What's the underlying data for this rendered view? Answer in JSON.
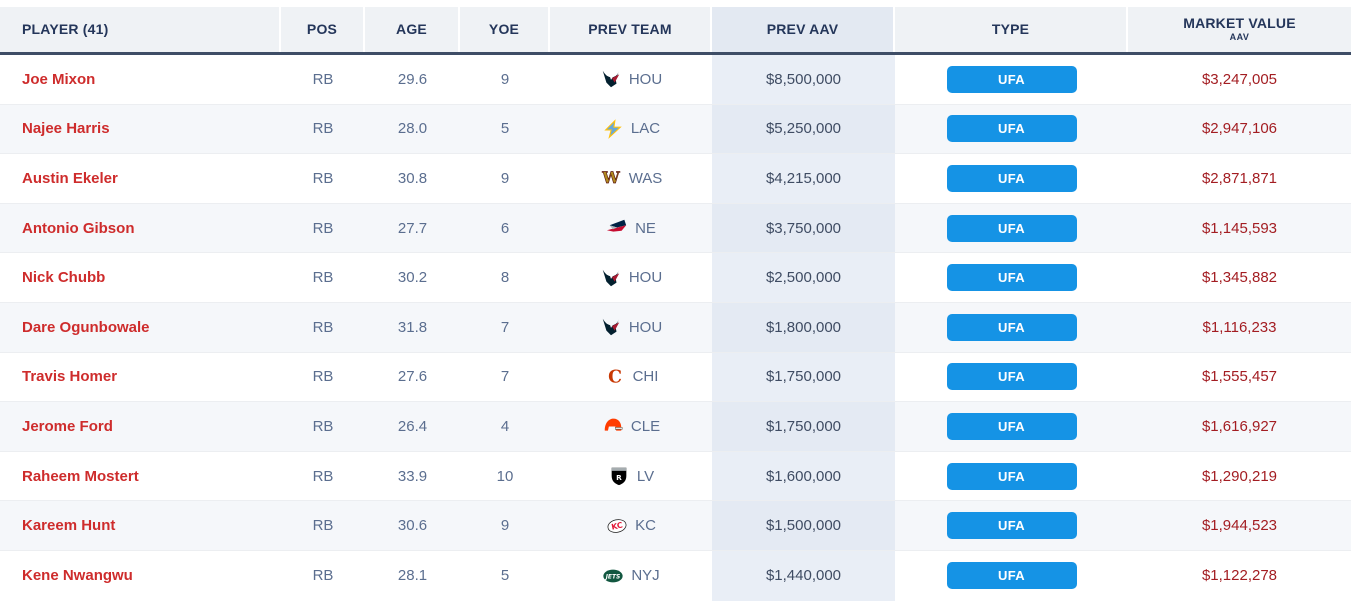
{
  "table": {
    "columns": [
      {
        "id": "player",
        "label": "PLAYER (41)"
      },
      {
        "id": "pos",
        "label": "POS"
      },
      {
        "id": "age",
        "label": "AGE"
      },
      {
        "id": "yoe",
        "label": "YOE"
      },
      {
        "id": "prev_team",
        "label": "PREV TEAM"
      },
      {
        "id": "prev_aav",
        "label": "PREV AAV"
      },
      {
        "id": "type",
        "label": "TYPE"
      },
      {
        "id": "market_value",
        "label": "MARKET VALUE",
        "sublabel": "AAV"
      }
    ],
    "rows": [
      {
        "player": "Joe Mixon",
        "pos": "RB",
        "age": "29.6",
        "yoe": "9",
        "prev_team": "HOU",
        "prev_aav": "$8,500,000",
        "type": "UFA",
        "market_value": "$3,247,005"
      },
      {
        "player": "Najee Harris",
        "pos": "RB",
        "age": "28.0",
        "yoe": "5",
        "prev_team": "LAC",
        "prev_aav": "$5,250,000",
        "type": "UFA",
        "market_value": "$2,947,106"
      },
      {
        "player": "Austin Ekeler",
        "pos": "RB",
        "age": "30.8",
        "yoe": "9",
        "prev_team": "WAS",
        "prev_aav": "$4,215,000",
        "type": "UFA",
        "market_value": "$2,871,871"
      },
      {
        "player": "Antonio Gibson",
        "pos": "RB",
        "age": "27.7",
        "yoe": "6",
        "prev_team": "NE",
        "prev_aav": "$3,750,000",
        "type": "UFA",
        "market_value": "$1,145,593"
      },
      {
        "player": "Nick Chubb",
        "pos": "RB",
        "age": "30.2",
        "yoe": "8",
        "prev_team": "HOU",
        "prev_aav": "$2,500,000",
        "type": "UFA",
        "market_value": "$1,345,882"
      },
      {
        "player": "Dare Ogunbowale",
        "pos": "RB",
        "age": "31.8",
        "yoe": "7",
        "prev_team": "HOU",
        "prev_aav": "$1,800,000",
        "type": "UFA",
        "market_value": "$1,116,233"
      },
      {
        "player": "Travis Homer",
        "pos": "RB",
        "age": "27.6",
        "yoe": "7",
        "prev_team": "CHI",
        "prev_aav": "$1,750,000",
        "type": "UFA",
        "market_value": "$1,555,457"
      },
      {
        "player": "Jerome Ford",
        "pos": "RB",
        "age": "26.4",
        "yoe": "4",
        "prev_team": "CLE",
        "prev_aav": "$1,750,000",
        "type": "UFA",
        "market_value": "$1,616,927"
      },
      {
        "player": "Raheem Mostert",
        "pos": "RB",
        "age": "33.9",
        "yoe": "10",
        "prev_team": "LV",
        "prev_aav": "$1,600,000",
        "type": "UFA",
        "market_value": "$1,290,219"
      },
      {
        "player": "Kareem Hunt",
        "pos": "RB",
        "age": "30.6",
        "yoe": "9",
        "prev_team": "KC",
        "prev_aav": "$1,500,000",
        "type": "UFA",
        "market_value": "$1,944,523"
      },
      {
        "player": "Kene Nwangwu",
        "pos": "RB",
        "age": "28.1",
        "yoe": "5",
        "prev_team": "NYJ",
        "prev_aav": "$1,440,000",
        "type": "UFA",
        "market_value": "$1,122,278"
      }
    ]
  },
  "teams": {
    "HOU": {
      "primary": "#03202f",
      "secondary": "#a71930"
    },
    "LAC": {
      "primary": "#67a8d8",
      "secondary": "#ffc20e"
    },
    "WAS": {
      "primary": "#5a1414",
      "secondary": "#b08a1e"
    },
    "NE": {
      "primary": "#002244",
      "secondary": "#c60c30"
    },
    "CHI": {
      "primary": "#0b162a",
      "secondary": "#c83803"
    },
    "CLE": {
      "primary": "#311d00",
      "secondary": "#ff3c00"
    },
    "LV": {
      "primary": "#000000",
      "secondary": "#a5acaf"
    },
    "KC": {
      "primary": "#e31837",
      "secondary": "#ffffff"
    },
    "NYJ": {
      "primary": "#125740",
      "secondary": "#ffffff"
    }
  },
  "colors": {
    "header_text": "#24365a",
    "header_cell_bg": "#eff2f5",
    "header_prev_aav_bg": "#e3e9f2",
    "header_border": "#3e4d66",
    "player_link": "#ce2c2c",
    "stat_text": "#5b6e8f",
    "prev_aav_text": "#3f4c63",
    "prev_aav_col_bg": "#e9eef6",
    "row_alt_bg": "#f5f7fa",
    "market_value_text": "#a31d22",
    "type_badge_bg": "#1593e5",
    "type_badge_text": "#ffffff"
  }
}
